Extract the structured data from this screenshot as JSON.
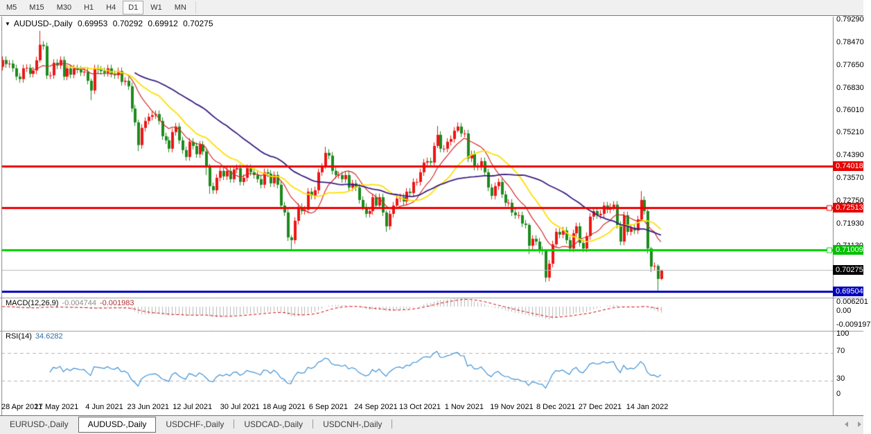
{
  "toolbar": {
    "timeframes": [
      "M5",
      "M15",
      "M30",
      "H1",
      "H4",
      "D1",
      "W1",
      "MN"
    ],
    "active": "D1"
  },
  "header": {
    "dropdown_icon": "▼",
    "symbol": "AUDUSD-,Daily",
    "open": "0.69953",
    "high": "0.70292",
    "low": "0.69912",
    "close": "0.70275"
  },
  "tabs": {
    "items": [
      "EURUSD-,Daily",
      "AUDUSD-,Daily",
      "USDCHF-,Daily",
      "USDCAD-,Daily",
      "USDCNH-,Daily"
    ],
    "active_index": 1
  },
  "icons": {
    "tab_scroll_left": "left-triangle",
    "tab_scroll_right": "right-triangle",
    "header_dropdown": "down-triangle"
  },
  "indicators": {
    "macd": {
      "name": "MACD(12,26,9)",
      "value_main": "-0.004744",
      "value_signal": "-0.001983",
      "axis_labels": [
        {
          "text": "0.006201",
          "y": 437
        },
        {
          "text": "0.00",
          "y": 450
        },
        {
          "text": "-0.009197",
          "y": 470
        }
      ]
    },
    "rsi": {
      "name": "RSI(14)",
      "value": "34.6282",
      "axis_labels": [
        {
          "text": "100",
          "y": 483
        },
        {
          "text": "70",
          "y": 508
        },
        {
          "text": "30",
          "y": 548
        },
        {
          "text": "0",
          "y": 570
        }
      ],
      "levels": [
        70,
        30
      ]
    }
  },
  "chart_data": {
    "type": "candlestick",
    "symbol": "AUDUSD",
    "timeframe": "Daily",
    "ylim": [
      0.693,
      0.7941
    ],
    "price_axis_labels": [
      "0.79290",
      "0.78470",
      "0.77650",
      "0.76830",
      "0.76010",
      "0.75210",
      "0.74390",
      "0.73570",
      "0.72750",
      "0.71930",
      "0.71130"
    ],
    "badges": [
      {
        "text": "0.74018",
        "price": 0.74018,
        "color": "#e60000"
      },
      {
        "text": "0.72513",
        "price": 0.72513,
        "color": "#e60000"
      },
      {
        "text": "0.71009",
        "price": 0.71009,
        "color": "#00c000"
      },
      {
        "text": "0.70275",
        "price": 0.70275,
        "color": "#000000"
      },
      {
        "text": "0.69504",
        "price": 0.69504,
        "color": "#0000bb"
      }
    ],
    "hlines": [
      {
        "price": 0.74018,
        "color": "#ef0000",
        "width": 3,
        "style": "solid",
        "handle": false
      },
      {
        "price": 0.72513,
        "color": "#ef0000",
        "width": 3,
        "style": "solid",
        "handle": true
      },
      {
        "price": 0.71009,
        "color": "#00d000",
        "width": 3,
        "style": "solid",
        "handle": true
      },
      {
        "price": 0.70275,
        "color": "#b8b8b8",
        "width": 1,
        "style": "solid",
        "handle": false
      },
      {
        "price": 0.69504,
        "color": "#0000bb",
        "width": 3,
        "style": "solid",
        "handle": false
      }
    ],
    "date_ticks": [
      {
        "i": 3,
        "label": "28 Apr 2021"
      },
      {
        "i": 16,
        "label": "17 May 2021"
      },
      {
        "i": 30,
        "label": "4 Jun 2021"
      },
      {
        "i": 43,
        "label": "23 Jun 2021"
      },
      {
        "i": 56,
        "label": "12 Jul 2021"
      },
      {
        "i": 70,
        "label": "30 Jul 2021"
      },
      {
        "i": 83,
        "label": "18 Aug 2021"
      },
      {
        "i": 96,
        "label": "6 Sep 2021"
      },
      {
        "i": 110,
        "label": "24 Sep 2021"
      },
      {
        "i": 123,
        "label": "13 Oct 2021"
      },
      {
        "i": 136,
        "label": "1 Nov 2021"
      },
      {
        "i": 150,
        "label": "19 Nov 2021"
      },
      {
        "i": 163,
        "label": "8 Dec 2021"
      },
      {
        "i": 176,
        "label": "27 Dec 2021"
      },
      {
        "i": 190,
        "label": "14 Jan 2022"
      }
    ],
    "first_open": 0.776,
    "closes": [
      0.7785,
      0.777,
      0.7772,
      0.7755,
      0.7725,
      0.7716,
      0.7755,
      0.7757,
      0.7735,
      0.7747,
      0.7784,
      0.784,
      0.7835,
      0.7729,
      0.773,
      0.7775,
      0.7765,
      0.7785,
      0.7725,
      0.7755,
      0.7732,
      0.7755,
      0.775,
      0.774,
      0.7743,
      0.771,
      0.7675,
      0.7755,
      0.775,
      0.7745,
      0.7738,
      0.7755,
      0.7735,
      0.773,
      0.7745,
      0.7706,
      0.771,
      0.769,
      0.761,
      0.756,
      0.7478,
      0.754,
      0.7565,
      0.758,
      0.7586,
      0.759,
      0.7565,
      0.751,
      0.7495,
      0.7465,
      0.7525,
      0.7545,
      0.7495,
      0.746,
      0.7435,
      0.749,
      0.7475,
      0.7445,
      0.748,
      0.7455,
      0.74,
      0.733,
      0.7315,
      0.736,
      0.7385,
      0.7365,
      0.7385,
      0.7355,
      0.739,
      0.7395,
      0.7345,
      0.736,
      0.7395,
      0.738,
      0.737,
      0.7355,
      0.7335,
      0.738,
      0.7375,
      0.734,
      0.737,
      0.7335,
      0.726,
      0.7235,
      0.7145,
      0.7135,
      0.7205,
      0.7255,
      0.724,
      0.7245,
      0.731,
      0.7295,
      0.7315,
      0.738,
      0.74,
      0.745,
      0.744,
      0.7385,
      0.737,
      0.737,
      0.7355,
      0.737,
      0.7325,
      0.734,
      0.7325,
      0.728,
      0.7255,
      0.723,
      0.724,
      0.729,
      0.726,
      0.729,
      0.7235,
      0.7185,
      0.723,
      0.726,
      0.7285,
      0.729,
      0.7275,
      0.731,
      0.7305,
      0.7345,
      0.7345,
      0.738,
      0.7415,
      0.742,
      0.7415,
      0.7475,
      0.7515,
      0.7465,
      0.7465,
      0.749,
      0.75,
      0.753,
      0.7545,
      0.752,
      0.752,
      0.743,
      0.7445,
      0.74,
      0.74,
      0.742,
      0.738,
      0.7325,
      0.7295,
      0.733,
      0.7345,
      0.73,
      0.727,
      0.727,
      0.7235,
      0.7225,
      0.7225,
      0.7195,
      0.719,
      0.7115,
      0.714,
      0.713,
      0.71,
      0.7095,
      0.7,
      0.705,
      0.712,
      0.7165,
      0.7155,
      0.717,
      0.7135,
      0.7105,
      0.716,
      0.7185,
      0.7125,
      0.7105,
      0.715,
      0.722,
      0.724,
      0.7225,
      0.723,
      0.726,
      0.7245,
      0.7255,
      0.7263,
      0.719,
      0.713,
      0.7225,
      0.7165,
      0.718,
      0.717,
      0.721,
      0.728,
      0.724,
      0.7105,
      0.704,
      0.7042,
      0.69953,
      0.70275
    ],
    "default_wick": 0.0013,
    "wicks": {
      "11": [
        0.005,
        0.0008
      ],
      "26": [
        0.0008,
        0.0035
      ],
      "40": [
        0.001,
        0.0022
      ],
      "60": [
        0.0008,
        0.003
      ],
      "61": [
        0.001,
        0.0028
      ],
      "85": [
        0.0008,
        0.0032
      ],
      "95": [
        0.0022,
        0.0008
      ],
      "113": [
        0.0008,
        0.002
      ],
      "128": [
        0.0032,
        0.0008
      ],
      "134": [
        0.0015,
        0.0006
      ],
      "155": [
        0.0006,
        0.003
      ],
      "160": [
        0.0008,
        0.0016
      ],
      "188": [
        0.0032,
        0.0006
      ],
      "190": [
        0.0006,
        0.0018
      ],
      "191": [
        0.0006,
        0.002
      ],
      "193": [
        0.0006,
        0.0042
      ],
      "194": [
        0.00017,
        0.00041
      ]
    },
    "moving_averages": [
      {
        "period": 10,
        "color": "#d42a2a",
        "width": 1.2
      },
      {
        "period": 20,
        "color": "#ffdf00",
        "width": 1.8
      },
      {
        "period": 40,
        "color": "#3a1c80",
        "width": 1.8
      }
    ],
    "macd_params": {
      "fast": 12,
      "slow": 26,
      "signal": 9
    },
    "rsi_params": {
      "period": 14
    },
    "colors": {
      "up_candle": "#ee1515",
      "down_candle": "#1e8a1e",
      "macd_hist": "#b8b8b8",
      "macd_signal": "#d40000",
      "rsi_line": "#3d91d6",
      "level_dashed": "#b4b4b4"
    }
  }
}
